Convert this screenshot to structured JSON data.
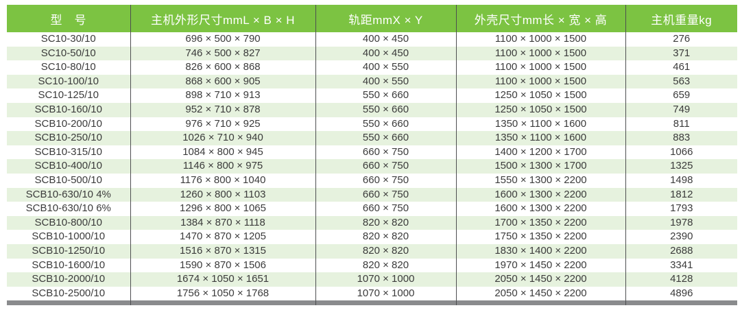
{
  "table": {
    "headers": [
      "型　号",
      "主机外形尺寸mmL × B × H",
      "轨距mmX × Y",
      "外壳尺寸mm长 × 宽 × 高",
      "主机重量kg"
    ],
    "rows": [
      [
        "SC10-30/10",
        "696 × 500 × 790",
        "400 × 450",
        "1100 × 1000 × 1500",
        "276"
      ],
      [
        "SC10-50/10",
        "746 × 500 × 827",
        "400 × 450",
        "1100 × 1000 × 1500",
        "371"
      ],
      [
        "SC10-80/10",
        "826 × 600 × 868",
        "400 × 550",
        "1100 × 1000 × 1500",
        "461"
      ],
      [
        "SC10-100/10",
        "868 × 600 × 905",
        "400 × 550",
        "1100 × 1000 × 1500",
        "563"
      ],
      [
        "SC10-125/10",
        "898 × 710 × 913",
        "550 × 660",
        "1250 × 1050 × 1500",
        "659"
      ],
      [
        "SCB10-160/10",
        "952 × 710 × 878",
        "550 × 660",
        "1250 × 1050 × 1500",
        "749"
      ],
      [
        "SCB10-200/10",
        "976 × 710 × 925",
        "550 × 660",
        "1350 × 1100 × 1600",
        "811"
      ],
      [
        "SCB10-250/10",
        "1026 × 710 × 940",
        "550 × 660",
        "1350 × 1100 × 1600",
        "883"
      ],
      [
        "SCB10-315/10",
        "1084 × 800 × 945",
        "660 × 750",
        "1400 × 1200 × 1700",
        "1066"
      ],
      [
        "SCB10-400/10",
        "1146 × 800 × 975",
        "660 × 750",
        "1500 × 1300 × 1700",
        "1325"
      ],
      [
        "SCB10-500/10",
        "1176 × 800 × 1040",
        "660 × 750",
        "1550 × 1300 × 2200",
        "1498"
      ],
      [
        "SCB10-630/10 4%",
        "1260 × 800 × 1103",
        "660 × 750",
        "1600 × 1300 × 2200",
        "1812"
      ],
      [
        "SCB10-630/10 6%",
        "1296 × 800 × 1065",
        "660 × 750",
        "1600 × 1300 × 2200",
        "1793"
      ],
      [
        "SCB10-800/10",
        "1384 × 870 × 1118",
        "820 × 820",
        "1700 × 1350 × 2200",
        "1978"
      ],
      [
        "SCB10-1000/10",
        "1470 × 870 × 1205",
        "820 × 820",
        "1750 × 1350 × 2200",
        "2390"
      ],
      [
        "SCB10-1250/10",
        "1516 × 870 × 1315",
        "820 × 820",
        "1830 × 1400 × 2200",
        "2688"
      ],
      [
        "SCB10-1600/10",
        "1590 × 870 × 1506",
        "820 × 820",
        "1970 × 1450 × 2200",
        "3341"
      ],
      [
        "SCB10-2000/10",
        "1674 × 1050 × 1651",
        "1070 × 1000",
        "2050 × 1450 × 2200",
        "4128"
      ],
      [
        "SCB10-2500/10",
        "1756 × 1050 × 1768",
        "1070 × 1000",
        "2050 × 1450 × 2200",
        "4896"
      ]
    ]
  },
  "colors": {
    "header_green": "#7CC342",
    "row_stripe": "#E6F2DE",
    "column_border": "#4D4E50",
    "bottom_bar": "#8A8B8D",
    "body_text": "#3B3B3B",
    "header_text": "#FFFFFF"
  }
}
